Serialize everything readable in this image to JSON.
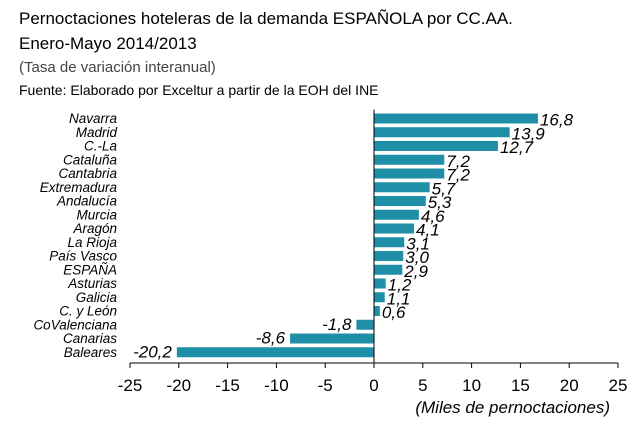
{
  "header": {
    "title": "Pernoctaciones hoteleras de la demanda ESPAÑOLA por CC.AA.",
    "subtitle": "Enero-Mayo 2014/2013",
    "note": "(Tasa de variación interanual)",
    "source": "Fuente: Elaborado por Exceltur a partir de la EOH del INE"
  },
  "colors": {
    "bar": "#1f8fa8",
    "axis": "#000000"
  },
  "chart_data": {
    "type": "bar",
    "orientation": "horizontal",
    "categories": [
      "Navarra",
      "Madrid",
      "C.-La",
      "Cataluña",
      "Cantabria",
      "Extremadura",
      "Andalucía",
      "Murcia",
      "Aragón",
      "La Rioja",
      "País Vasco",
      "ESPAÑA",
      "Asturias",
      "Galicia",
      "C. y León",
      "CoValenciana",
      "Canarias",
      "Baleares"
    ],
    "values": [
      16.8,
      13.9,
      12.7,
      7.2,
      7.2,
      5.7,
      5.3,
      4.6,
      4.1,
      3.1,
      3.0,
      2.9,
      1.2,
      1.1,
      0.6,
      -1.8,
      -8.6,
      -20.2
    ],
    "value_labels": [
      "16,8",
      "13,9",
      "12,7",
      "7,2",
      "7,2",
      "5,7",
      "5,3",
      "4,6",
      "4,1",
      "3,1",
      "3,0",
      "2,9",
      "1,2",
      "1,1",
      "0,6",
      "-1,8",
      "-8,6",
      "-20,2"
    ],
    "xlim": [
      -25,
      25
    ],
    "xticks": [
      -25,
      -20,
      -15,
      -10,
      -5,
      0,
      5,
      10,
      15,
      20,
      25
    ],
    "xtick_labels": [
      "-25",
      "-20",
      "-15",
      "-10",
      "-5",
      "0",
      "5",
      "10",
      "15",
      "20",
      "25"
    ],
    "xlabel": "(Miles de pernoctaciones)",
    "ylabel": "",
    "grid": false,
    "legend": "none"
  }
}
